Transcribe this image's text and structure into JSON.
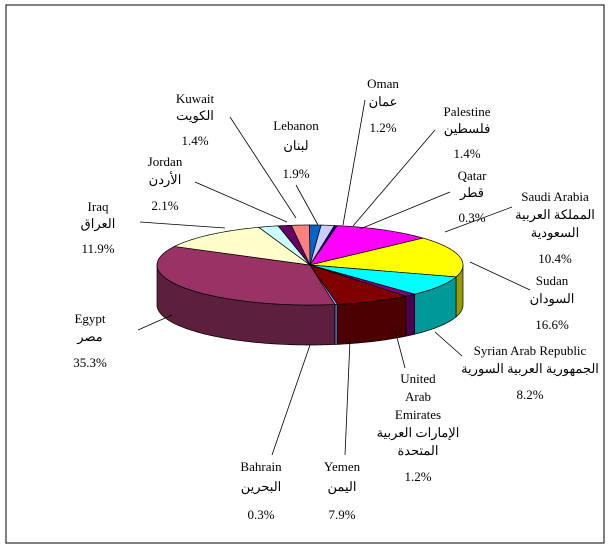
{
  "chart_data": {
    "type": "pie3d",
    "categories": [
      "Bahrain",
      "Egypt",
      "Iraq",
      "Jordan",
      "Kuwait",
      "Lebanon",
      "Oman",
      "Palestine",
      "Qatar",
      "Saudi Arabia",
      "Sudan",
      "Syrian Arab Republic",
      "United Arab Emirates",
      "Yemen"
    ],
    "categories_ar": [
      "البحرين",
      "مصر",
      "العراق",
      "الأردن",
      "الكويت",
      "لبنان",
      "عمان",
      "فلسطين",
      "قطر",
      "المملكة العربية السعودية",
      "السودان",
      "الجمهورية العربية السورية",
      "الإمارات العربية المتحدة",
      "اليمن"
    ],
    "values": [
      0.3,
      35.3,
      11.9,
      2.1,
      1.4,
      1.9,
      1.2,
      1.4,
      0.3,
      10.4,
      16.6,
      8.2,
      1.2,
      7.9
    ],
    "value_labels": [
      "0.3%",
      "35.3%",
      "11.9%",
      "2.1%",
      "1.4%",
      "1.9%",
      "1.2%",
      "1.4%",
      "0.3%",
      "10.4%",
      "16.6%",
      "8.2%",
      "1.2%",
      "7.9%"
    ],
    "colors": [
      "#9999ff",
      "#993366",
      "#ffffcc",
      "#ccffff",
      "#660066",
      "#ff8080",
      "#0066cc",
      "#ccccff",
      "#000080",
      "#ff00ff",
      "#ffff00",
      "#00ffff",
      "#800080",
      "#800000"
    ]
  }
}
